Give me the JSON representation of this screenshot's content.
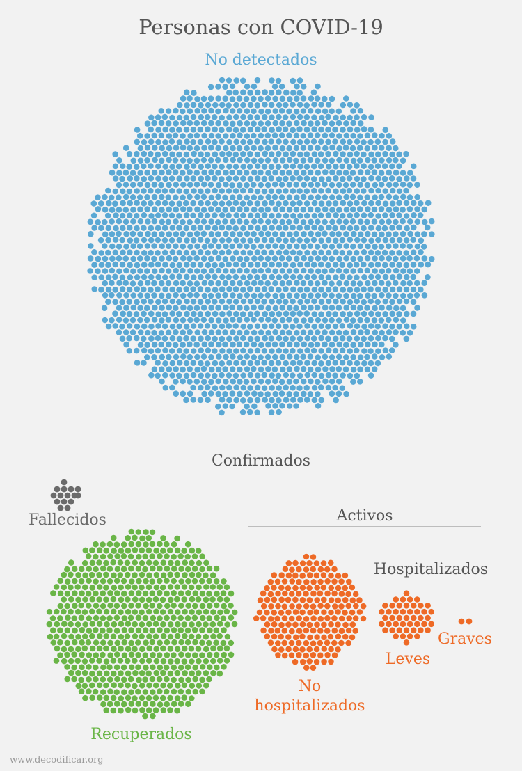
{
  "title": "Personas con COVID-19",
  "colors": {
    "no_detectados": "#5aa8d4",
    "fallecidos": "#6b6b6b",
    "recuperados": "#6ab547",
    "activos": "#ee6a26",
    "text_gray": "#555555",
    "rule": "#bdbdbd",
    "background": "#f2f2f2"
  },
  "labels": {
    "no_detectados": "No detectados",
    "confirmados": "Confirmados",
    "fallecidos": "Fallecidos",
    "activos": "Activos",
    "hospitalizados": "Hospitalizados",
    "recuperados": "Recuperados",
    "no_hospitalizados_line1": "No",
    "no_hospitalizados_line2": "hospitalizados",
    "leves": "Leves",
    "graves": "Graves"
  },
  "footer": "www.decodificar.org"
}
